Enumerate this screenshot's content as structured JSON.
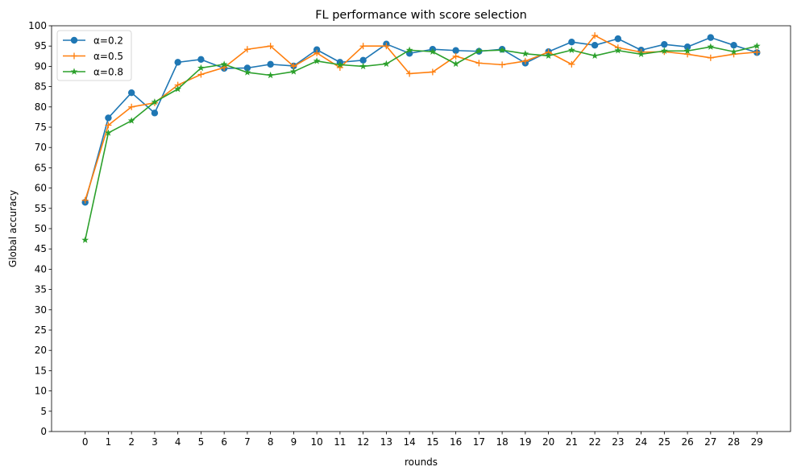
{
  "chart_data": {
    "type": "line",
    "title": "FL performance with score selection",
    "xlabel": "rounds",
    "ylabel": "Global accuracy",
    "x": [
      0,
      1,
      2,
      3,
      4,
      5,
      6,
      7,
      8,
      9,
      10,
      11,
      12,
      13,
      14,
      15,
      16,
      17,
      18,
      19,
      20,
      21,
      22,
      23,
      24,
      25,
      26,
      27,
      28,
      29
    ],
    "xlim": [
      -1.45,
      30.45
    ],
    "ylim": [
      0,
      100
    ],
    "yticks": [
      0,
      5,
      10,
      15,
      20,
      25,
      30,
      35,
      40,
      45,
      50,
      55,
      60,
      65,
      70,
      75,
      80,
      85,
      90,
      95,
      100
    ],
    "grid": false,
    "legend_position": "top-left",
    "series": [
      {
        "name": "α=0.2",
        "color": "#1f77b4",
        "marker": "circle",
        "values": [
          56.5,
          77.3,
          83.5,
          78.5,
          91.0,
          91.7,
          89.5,
          89.6,
          90.5,
          90.1,
          94.1,
          91.0,
          91.5,
          95.5,
          93.2,
          94.2,
          93.9,
          93.7,
          94.2,
          90.8,
          93.6,
          96.0,
          95.2,
          96.8,
          94.0,
          95.4,
          94.8,
          97.1,
          95.2,
          93.4
        ]
      },
      {
        "name": "α=0.5",
        "color": "#ff7f0e",
        "marker": "plus",
        "values": [
          57.0,
          75.5,
          80.0,
          81.0,
          85.4,
          88.0,
          89.7,
          94.2,
          95.0,
          90.0,
          93.3,
          89.7,
          95.0,
          95.0,
          88.2,
          88.6,
          92.5,
          90.8,
          90.4,
          91.3,
          93.5,
          90.5,
          97.6,
          94.6,
          93.5,
          93.6,
          93.0,
          92.1,
          93.0,
          93.5
        ]
      },
      {
        "name": "α=0.8",
        "color": "#2ca02c",
        "marker": "star",
        "values": [
          47.2,
          73.6,
          76.6,
          81.2,
          84.4,
          89.6,
          90.5,
          88.5,
          87.8,
          88.7,
          91.3,
          90.4,
          90.0,
          90.6,
          94.0,
          93.6,
          90.6,
          93.8,
          94.0,
          93.1,
          92.6,
          94.0,
          92.6,
          93.9,
          93.0,
          93.8,
          93.8,
          94.8,
          93.6,
          95.0
        ]
      }
    ]
  }
}
